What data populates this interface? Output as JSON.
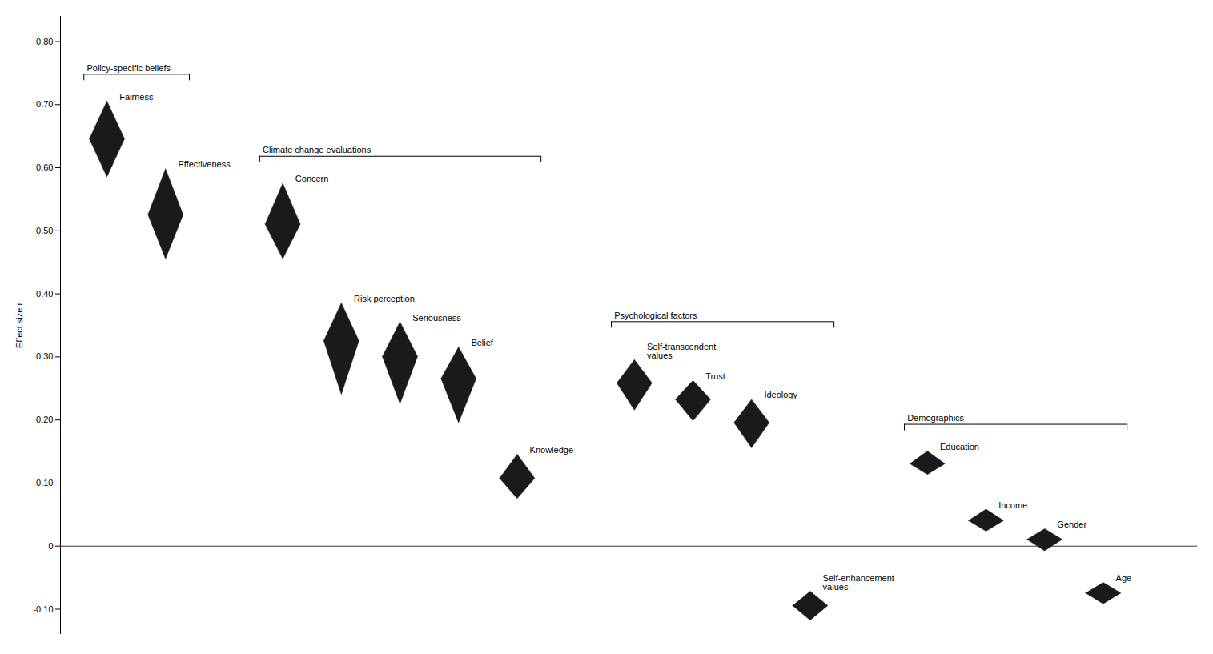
{
  "chart_data": {
    "type": "diamond",
    "ylabel": "Effect size r",
    "ylim": [
      -0.14,
      0.84
    ],
    "yticks": [
      {
        "value": -0.1,
        "label": "-0.10"
      },
      0,
      {
        "value": 0.1,
        "label": "0.10"
      },
      {
        "value": 0.2,
        "label": "0.20"
      },
      {
        "value": 0.3,
        "label": "0.30"
      },
      {
        "value": 0.4,
        "label": "0.40"
      },
      {
        "value": 0.5,
        "label": "0.50"
      },
      {
        "value": 0.6,
        "label": "0.60"
      },
      {
        "value": 0.7,
        "label": "0.70"
      },
      {
        "value": 0.8,
        "label": "0.80"
      }
    ],
    "tick_labels": "y",
    "color": "#1a1a1a",
    "categories": [
      "Fairness",
      "Effectiveness",
      "Concern",
      "Risk perception",
      "Seriousness",
      "Belief",
      "Knowledge",
      "Self-transcendent\nvalues",
      "Trust",
      "Ideology",
      "Self-enhancement\nvalues",
      "Education",
      "Income",
      "Gender",
      "Age"
    ],
    "values": [
      0.645,
      0.525,
      0.51,
      0.325,
      0.3,
      0.265,
      0.107,
      0.258,
      0.232,
      0.195,
      -0.095,
      0.13,
      0.04,
      0.01,
      -0.075
    ],
    "low": [
      0.585,
      0.455,
      0.455,
      0.24,
      0.225,
      0.195,
      0.075,
      0.215,
      0.198,
      0.155,
      -0.118,
      0.113,
      0.023,
      -0.008,
      -0.092
    ],
    "high": [
      0.705,
      0.598,
      0.575,
      0.385,
      0.355,
      0.315,
      0.145,
      0.295,
      0.262,
      0.232,
      -0.072,
      0.15,
      0.058,
      0.027,
      -0.058
    ],
    "groups": [
      {
        "label": "Policy-specific beliefs",
        "categories": [
          "Fairness",
          "Effectiveness"
        ]
      },
      {
        "label": "Climate change evaluations",
        "categories": [
          "Concern",
          "Risk perception",
          "Seriousness",
          "Belief",
          "Knowledge"
        ]
      },
      {
        "label": "Psychological factors",
        "categories": [
          "Self-transcendent\nvalues",
          "Trust",
          "Ideology",
          "Self-enhancement\nvalues"
        ]
      },
      {
        "label": "Demographics",
        "categories": [
          "Education",
          "Income",
          "Gender",
          "Age"
        ]
      }
    ]
  }
}
